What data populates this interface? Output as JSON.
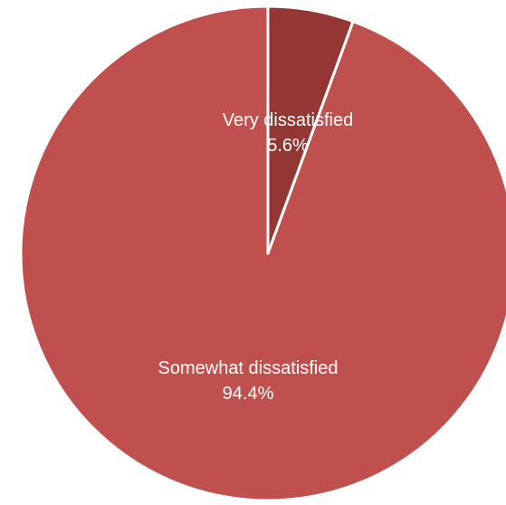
{
  "chart_data": {
    "type": "pie",
    "title": "",
    "start_angle_deg": 0,
    "direction": "clockwise",
    "slices": [
      {
        "label": "Very dissatisfied",
        "value": 5.6,
        "value_label": "5.6%",
        "color": "#943634"
      },
      {
        "label": "Somewhat dissatisfied",
        "value": 94.4,
        "value_label": "94.4%",
        "color": "#c0504d"
      }
    ],
    "legend": "none"
  }
}
